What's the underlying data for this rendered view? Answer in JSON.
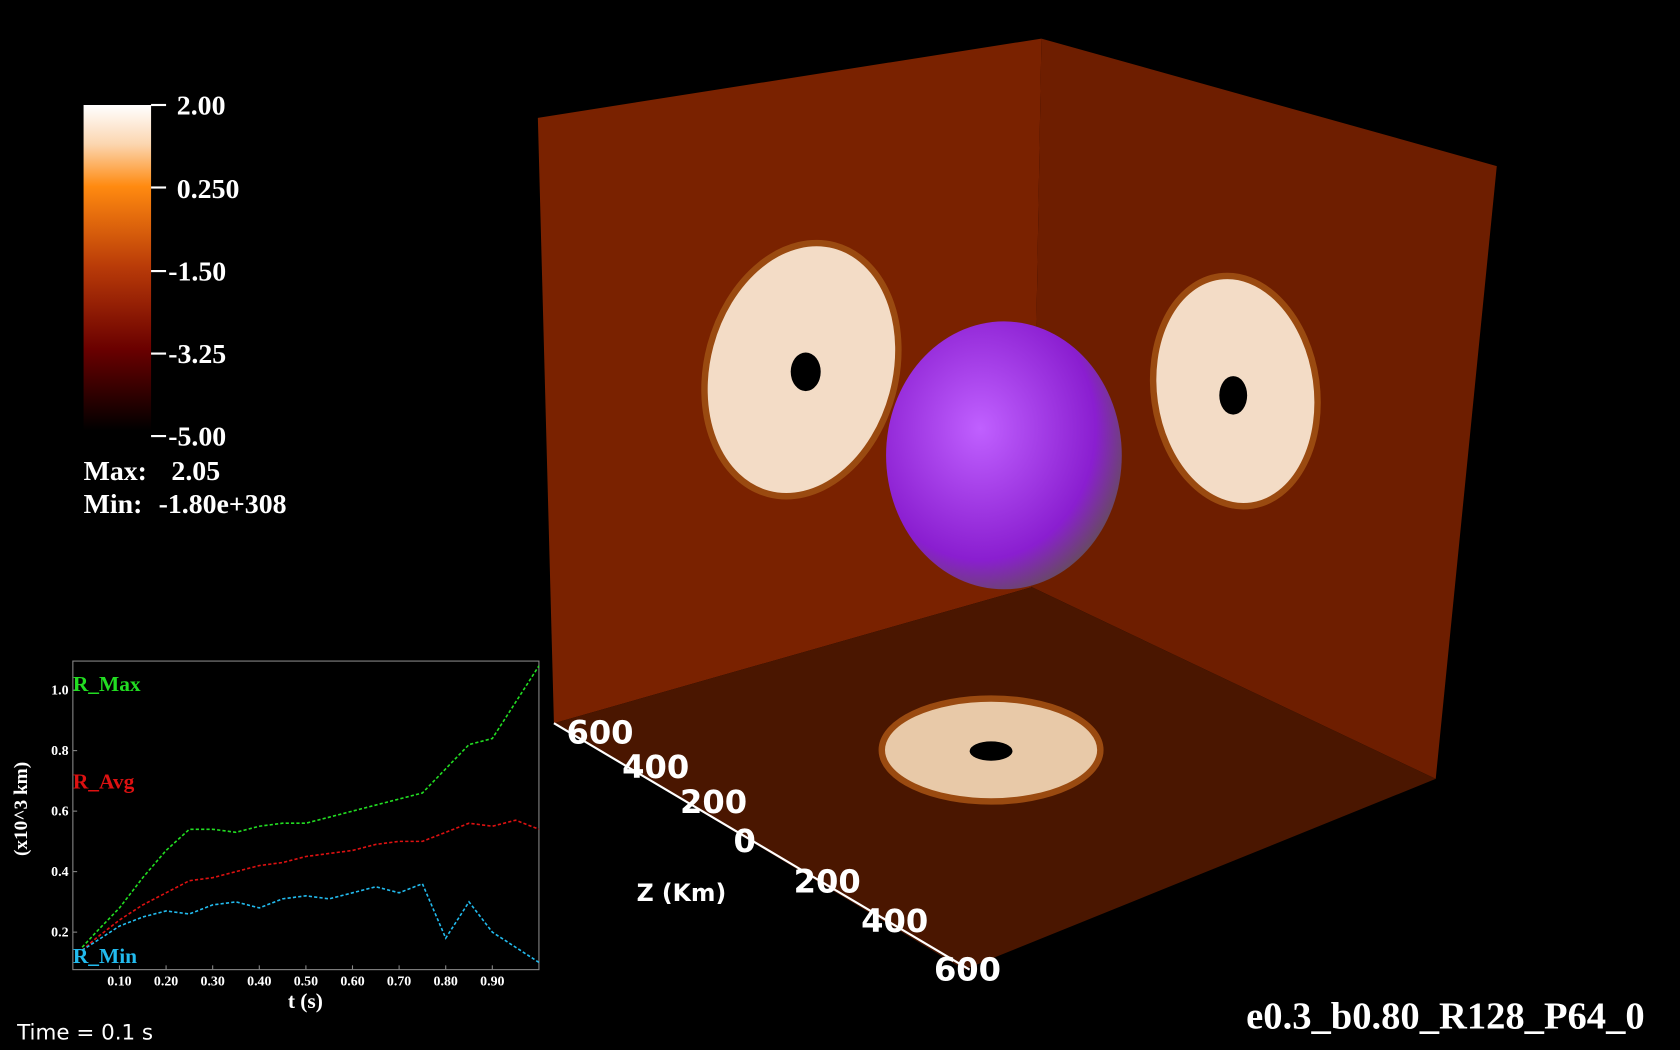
{
  "colorbar": {
    "ticks": [
      "2.00",
      "0.250",
      "-1.50",
      "-3.25",
      "-5.00"
    ],
    "max_label": "Max:",
    "max": "2.05",
    "min_label": "Min:",
    "min": "-1.80e+308"
  },
  "axis3d": {
    "title": "Z (Km)",
    "ticks": [
      "600",
      "400",
      "200",
      "0",
      "200",
      "400",
      "600"
    ]
  },
  "time_label": "Time = 0.1 s",
  "run_name": "e0.3_b0.80_R128_P64_0",
  "chart_data": {
    "type": "line",
    "xlabel": "t (s)",
    "ylabel": "(x10^3 km)",
    "x": [
      0.02,
      0.05,
      0.1,
      0.15,
      0.2,
      0.25,
      0.3,
      0.35,
      0.4,
      0.45,
      0.5,
      0.55,
      0.6,
      0.65,
      0.7,
      0.75,
      0.8,
      0.85,
      0.9,
      0.95,
      1.0
    ],
    "series": [
      {
        "name": "R_Max",
        "color": "#22dd22",
        "values": [
          0.15,
          0.2,
          0.28,
          0.38,
          0.47,
          0.54,
          0.54,
          0.53,
          0.55,
          0.56,
          0.56,
          0.58,
          0.6,
          0.62,
          0.64,
          0.66,
          0.74,
          0.82,
          0.84,
          0.96,
          1.08
        ]
      },
      {
        "name": "R_Avg",
        "color": "#dd1111",
        "values": [
          0.14,
          0.18,
          0.24,
          0.29,
          0.33,
          0.37,
          0.38,
          0.4,
          0.42,
          0.43,
          0.45,
          0.46,
          0.47,
          0.49,
          0.5,
          0.5,
          0.53,
          0.56,
          0.55,
          0.57,
          0.54
        ]
      },
      {
        "name": "R_Min",
        "color": "#22bbee",
        "values": [
          0.14,
          0.17,
          0.22,
          0.25,
          0.27,
          0.26,
          0.29,
          0.3,
          0.28,
          0.31,
          0.32,
          0.31,
          0.33,
          0.35,
          0.33,
          0.36,
          0.18,
          0.3,
          0.2,
          0.15,
          0.1
        ]
      }
    ],
    "xlim": [
      0,
      1.0
    ],
    "ylim": [
      0.076,
      1.096
    ],
    "xticks": [
      {
        "value": 0.1,
        "label": "0.10"
      },
      {
        "value": 0.2,
        "label": "0.20"
      },
      {
        "value": 0.3,
        "label": "0.30"
      },
      {
        "value": 0.4,
        "label": "0.40"
      },
      {
        "value": 0.5,
        "label": "0.50"
      },
      {
        "value": 0.6,
        "label": "0.60"
      },
      {
        "value": 0.7,
        "label": "0.70"
      },
      {
        "value": 0.8,
        "label": "0.80"
      },
      {
        "value": 0.9,
        "label": "0.90"
      }
    ],
    "yticks": [
      0.2,
      0.4,
      0.6,
      0.8,
      {
        "value": 1.0,
        "label": "1.0"
      }
    ]
  }
}
